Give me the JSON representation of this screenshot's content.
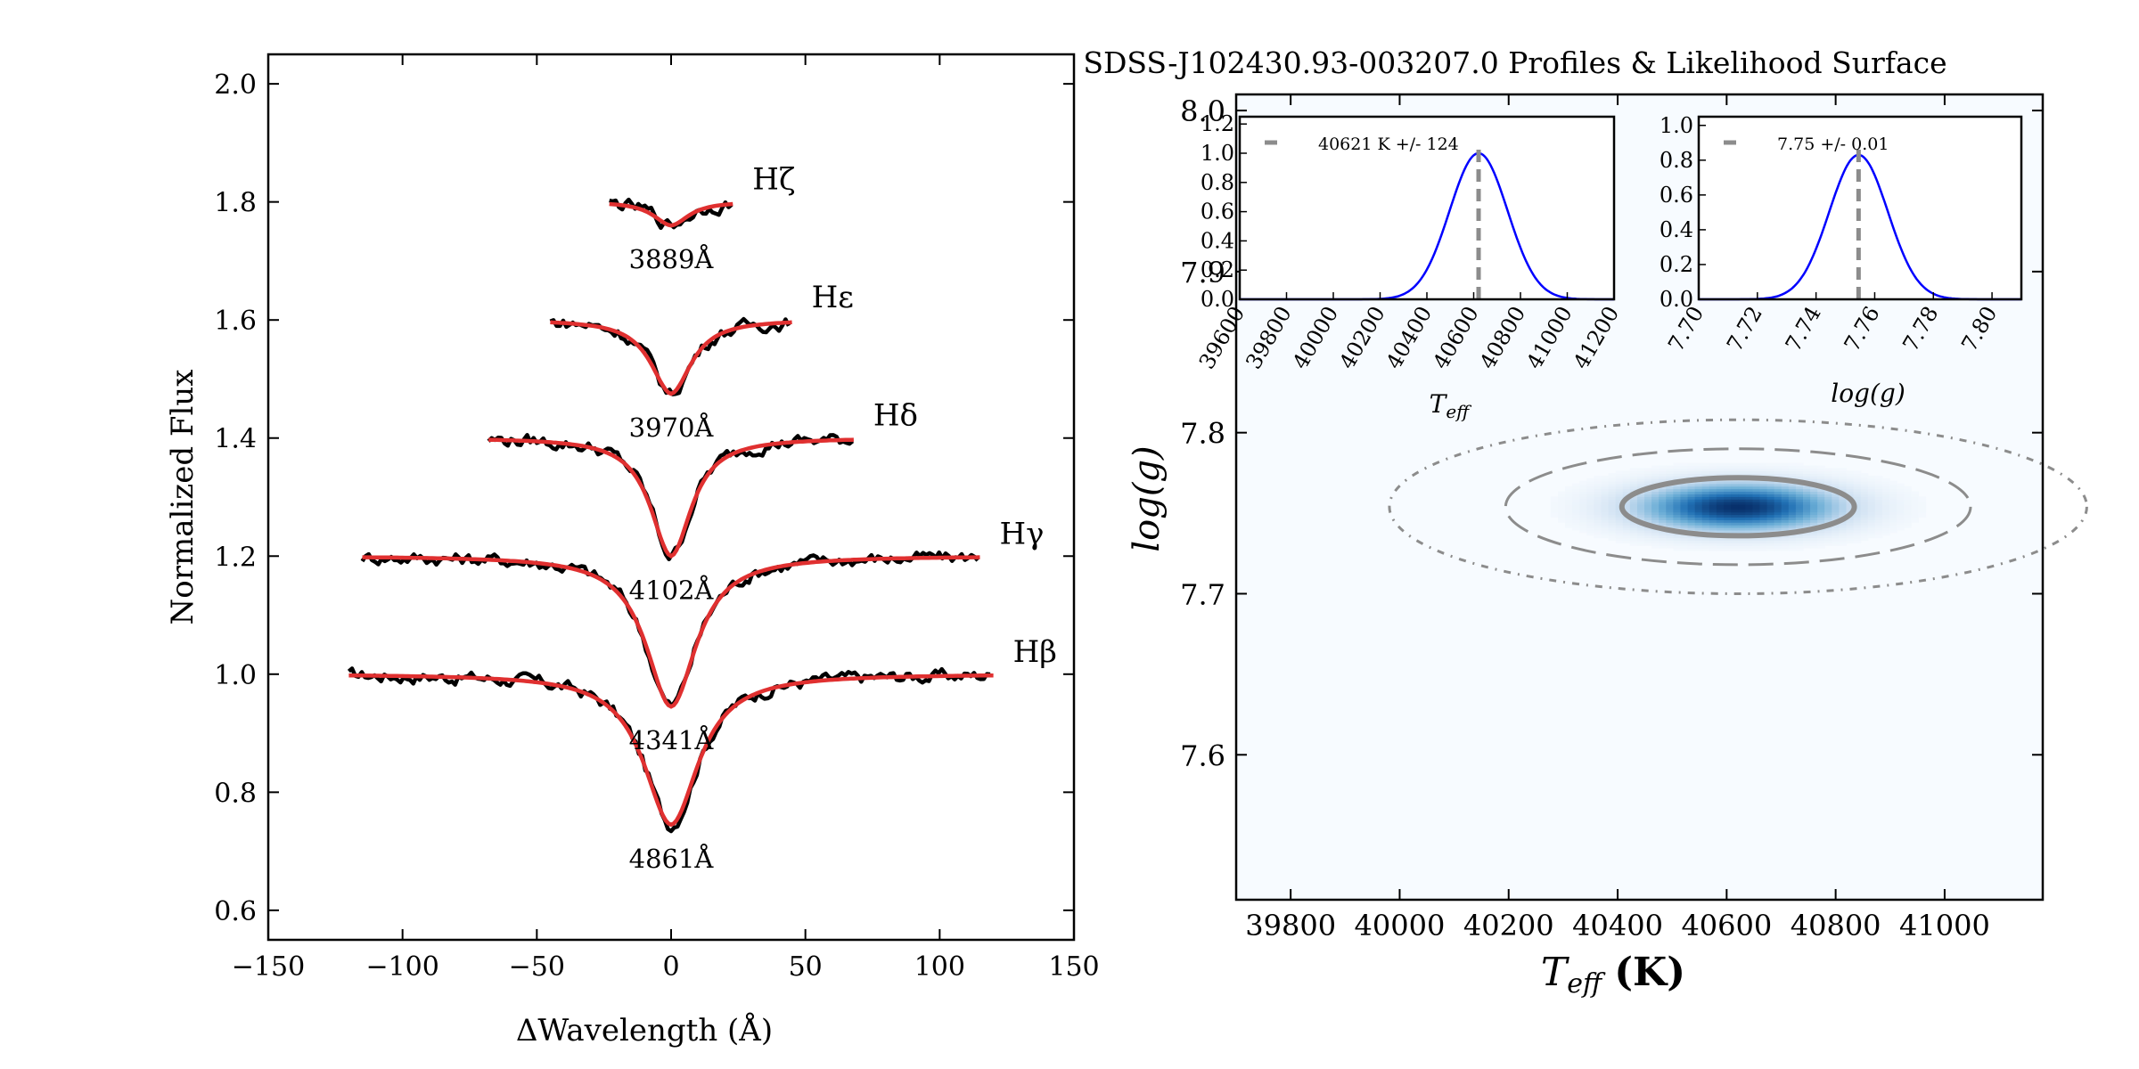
{
  "chart_data": [
    {
      "type": "line",
      "xlabel": "ΔWavelength (Å)",
      "ylabel": "Normalized Flux",
      "xlim": [
        -150,
        150
      ],
      "ylim": [
        0.55,
        2.05
      ],
      "xticks": [
        -150,
        -100,
        -50,
        0,
        50,
        100,
        150
      ],
      "yticks": [
        0.6,
        0.8,
        1.0,
        1.2,
        1.4,
        1.6,
        1.8,
        2.0
      ],
      "grid": false,
      "series_colors": {
        "observed": "#000000",
        "model": "#e03030"
      },
      "lines": [
        {
          "name": "Hβ",
          "wavelength": "4861Å",
          "offset": 1.0,
          "depth": 0.255,
          "halfwidth": 120,
          "width": 12
        },
        {
          "name": "Hγ",
          "wavelength": "4341Å",
          "offset": 1.2,
          "depth": 0.255,
          "halfwidth": 115,
          "width": 11
        },
        {
          "name": "Hδ",
          "wavelength": "4102Å",
          "offset": 1.4,
          "depth": 0.2,
          "halfwidth": 68,
          "width": 9
        },
        {
          "name": "Hε",
          "wavelength": "3970Å",
          "offset": 1.6,
          "depth": 0.125,
          "halfwidth": 45,
          "width": 9
        },
        {
          "name": "Hζ",
          "wavelength": "3889Å",
          "offset": 1.8,
          "depth": 0.04,
          "halfwidth": 23,
          "width": 8
        }
      ]
    },
    {
      "type": "heatmap",
      "title": "SDSS-J102430.93-003207.0 Profiles & Likelihood Surface",
      "xlabel": "T",
      "xlabel_sub": "eff",
      "xlabel_unit": "(K)",
      "ylabel": "log(g)",
      "xlim": [
        39700,
        41180
      ],
      "ylim": [
        7.51,
        8.01
      ],
      "xticks": [
        39800,
        40000,
        40200,
        40400,
        40600,
        40800,
        41000
      ],
      "yticks": [
        7.6,
        7.7,
        7.8,
        7.9,
        8.0
      ],
      "peak": {
        "teff": 40621,
        "logg": 7.754
      },
      "sigma": {
        "teff": 124,
        "logg": 0.01
      },
      "contour_levels": [
        1,
        2,
        3
      ],
      "contour_color": "#8c8c8c",
      "colormap": [
        "#f7fbff",
        "#c6dbef",
        "#6baed6",
        "#2171b5",
        "#08306b"
      ],
      "insets": [
        {
          "name": "teff",
          "xlabel": "T",
          "xlabel_sub": "eff",
          "legend": "40621 K +/- 124",
          "xlim": [
            39600,
            41200
          ],
          "ylim": [
            0,
            1.25
          ],
          "xticks": [
            39600,
            39800,
            40000,
            40200,
            40400,
            40600,
            40800,
            41000,
            41200
          ],
          "yticks": [
            0.0,
            0.2,
            0.4,
            0.6,
            0.8,
            1.0,
            1.2
          ],
          "mean": 40621,
          "sigma": 124,
          "peak": 1.0,
          "line_color": "#0000ff"
        },
        {
          "name": "logg",
          "xlabel": "log(g)",
          "xlabel_sub": "",
          "legend": "7.75 +/- 0.01",
          "xlim": [
            7.7,
            7.81
          ],
          "ylim": [
            0,
            1.05
          ],
          "xticks": [
            7.7,
            7.72,
            7.74,
            7.76,
            7.78,
            7.8
          ],
          "yticks": [
            0.0,
            0.2,
            0.4,
            0.6,
            0.8,
            1.0
          ],
          "mean": 7.7545,
          "sigma": 0.01,
          "peak": 0.83,
          "line_color": "#0000ff"
        }
      ]
    }
  ]
}
